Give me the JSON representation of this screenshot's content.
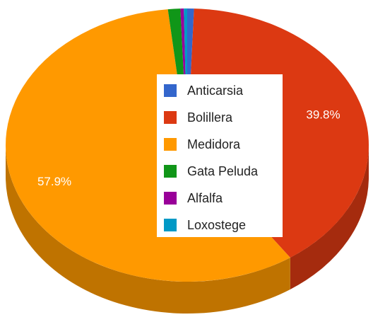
{
  "chart_data": {
    "type": "pie3d",
    "categories": [
      "Anticarsia",
      "Bolillera",
      "Medidora",
      "Gata Peluda",
      "Alfalfa",
      "Loxostege"
    ],
    "values": [
      0.6,
      39.8,
      57.9,
      1.1,
      0.3,
      0.3
    ],
    "value_labels": [
      null,
      "39.8%",
      "57.9%",
      null,
      null,
      null
    ],
    "colors": [
      "#3366cc",
      "#dc3912",
      "#ff9900",
      "#109618",
      "#990099",
      "#0099c6"
    ],
    "legend": "center"
  }
}
